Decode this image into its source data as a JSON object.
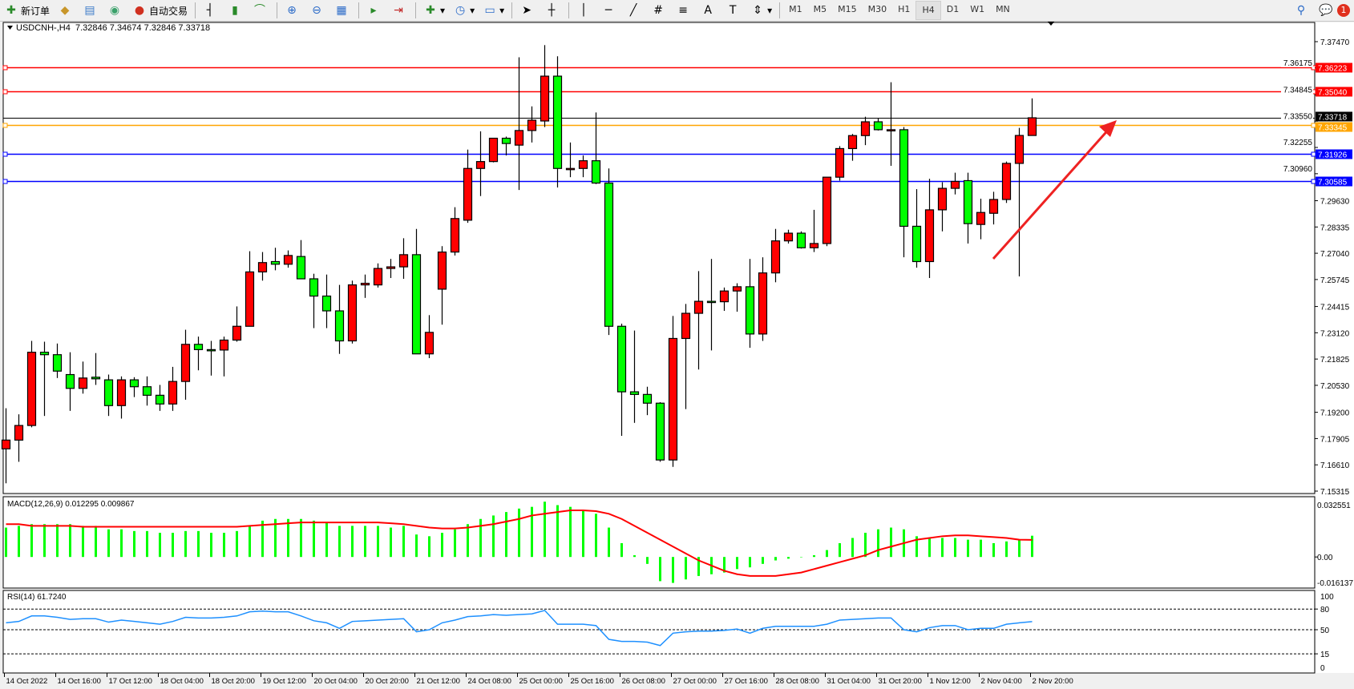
{
  "toolbar": {
    "new_order": "新订单",
    "auto_trading": "自动交易",
    "timeframes": [
      "M1",
      "M5",
      "M15",
      "M30",
      "H1",
      "H4",
      "D1",
      "W1",
      "MN"
    ],
    "active_timeframe": "H4",
    "notification_count": "1",
    "icons": [
      "new-order-icon",
      "market-watch-icon",
      "data-window-icon",
      "navigator-icon",
      "auto-trading-icon",
      "bar-chart-icon",
      "candlestick-icon",
      "line-chart-icon",
      "zoom-in-icon",
      "zoom-out-icon",
      "tile-windows-icon",
      "chart-shift-icon",
      "autoscroll-icon",
      "indicators-icon",
      "periods-icon",
      "templates-icon",
      "cursor-icon",
      "crosshair-icon",
      "vertical-line-icon",
      "horizontal-line-icon",
      "trendline-icon",
      "fibonacci-expansion-icon",
      "fibonacci-retracement-icon",
      "text-icon",
      "text-label-icon",
      "arrows-icon",
      "search-icon",
      "notification-icon"
    ]
  },
  "chart_header": "USDCNH-,H4  7.32846 7.34674 7.32846 7.33718",
  "colors": {
    "bull": "#ff0000",
    "bear": "#00ff00",
    "macd_hist": "#00ff00",
    "macd_signal": "#ff0000",
    "rsi": "#1e90ff",
    "resistance": "#ff0000",
    "pivot": "#ffa500",
    "support": "#0000ff",
    "bid": "#000000"
  },
  "chart_data": {
    "type": "candlestick",
    "symbol": "USDCNH-",
    "timeframe": "H4",
    "last_ohlc": {
      "open": 7.32846,
      "high": 7.34674,
      "low": 7.32846,
      "close": 7.33718
    },
    "ylim": [
      7.15315,
      7.3747
    ],
    "y_ticks": [
      "7.37470",
      "7.36175",
      "7.34845",
      "7.33550",
      "7.32255",
      "7.30960",
      "7.29630",
      "7.28335",
      "7.27040",
      "7.25745",
      "7.24415",
      "7.23120",
      "7.21825",
      "7.20530",
      "7.19200",
      "7.17905",
      "7.16610",
      "7.15315"
    ],
    "x_tick_labels": [
      "14 Oct 2022",
      "14 Oct 16:00",
      "17 Oct 12:00",
      "18 Oct 04:00",
      "18 Oct 20:00",
      "19 Oct 12:00",
      "20 Oct 04:00",
      "20 Oct 20:00",
      "21 Oct 12:00",
      "24 Oct 08:00",
      "25 Oct 00:00",
      "25 Oct 16:00",
      "26 Oct 08:00",
      "27 Oct 00:00",
      "27 Oct 16:00",
      "28 Oct 08:00",
      "31 Oct 04:00",
      "31 Oct 20:00",
      "1 Nov 12:00",
      "2 Nov 04:00",
      "2 Nov 20:00"
    ],
    "bars_per_tick_label": 4,
    "candles_ohlc": [
      [
        7.174,
        7.194,
        7.157,
        7.1783
      ],
      [
        7.1783,
        7.191,
        7.1676,
        7.1855
      ],
      [
        7.1855,
        7.2272,
        7.1846,
        7.2216
      ],
      [
        7.2216,
        7.2268,
        7.1902,
        7.2204
      ],
      [
        7.2204,
        7.2259,
        7.2089,
        7.2123
      ],
      [
        7.2106,
        7.2216,
        7.1927,
        7.2038
      ],
      [
        7.2038,
        7.217,
        7.2012,
        7.2089
      ],
      [
        7.2093,
        7.2212,
        7.2055,
        7.2085
      ],
      [
        7.208,
        7.2106,
        7.1902,
        7.1953
      ],
      [
        7.1953,
        7.2097,
        7.1889,
        7.208
      ],
      [
        7.208,
        7.2093,
        7.1995,
        7.2046
      ],
      [
        7.2046,
        7.2097,
        7.1953,
        7.2004
      ],
      [
        7.2004,
        7.2055,
        7.1927,
        7.1961
      ],
      [
        7.1961,
        7.2144,
        7.1927,
        7.2072
      ],
      [
        7.2072,
        7.2327,
        7.1982,
        7.2255
      ],
      [
        7.2255,
        7.2293,
        7.2127,
        7.2229
      ],
      [
        7.2229,
        7.2272,
        7.2101,
        7.2227
      ],
      [
        7.2227,
        7.2293,
        7.2097,
        7.2276
      ],
      [
        7.2276,
        7.2442,
        7.2268,
        7.2344
      ],
      [
        7.2344,
        7.2714,
        7.2344,
        7.2612
      ],
      [
        7.2612,
        7.271,
        7.2569,
        7.2658
      ],
      [
        7.2663,
        7.2731,
        7.262,
        7.265
      ],
      [
        7.265,
        7.2718,
        7.2633,
        7.2693
      ],
      [
        7.2688,
        7.2769,
        7.2578,
        7.2578
      ],
      [
        7.2578,
        7.2603,
        7.2335,
        7.2493
      ],
      [
        7.2493,
        7.2599,
        7.2335,
        7.242
      ],
      [
        7.242,
        7.2548,
        7.2208,
        7.2272
      ],
      [
        7.2272,
        7.2569,
        7.2259,
        7.2548
      ],
      [
        7.2548,
        7.2599,
        7.2484,
        7.2556
      ],
      [
        7.2548,
        7.2654,
        7.2535,
        7.2629
      ],
      [
        7.2629,
        7.2676,
        7.2582,
        7.2637
      ],
      [
        7.2637,
        7.2778,
        7.2578,
        7.2697
      ],
      [
        7.2697,
        7.2824,
        7.2208,
        7.2208
      ],
      [
        7.2208,
        7.2399,
        7.2187,
        7.2314
      ],
      [
        7.2527,
        7.2739,
        7.2352,
        7.271
      ],
      [
        7.271,
        7.2931,
        7.2693,
        7.2875
      ],
      [
        7.2867,
        7.3215,
        7.2854,
        7.3122
      ],
      [
        7.3122,
        7.3305,
        7.2986,
        7.3156
      ],
      [
        7.3156,
        7.3271,
        7.3152,
        7.3271
      ],
      [
        7.3271,
        7.3279,
        7.3186,
        7.3245
      ],
      [
        7.3237,
        7.367,
        7.3016,
        7.3309
      ],
      [
        7.3309,
        7.3428,
        7.325,
        7.336
      ],
      [
        7.3356,
        7.373,
        7.3326,
        7.3577
      ],
      [
        7.3577,
        7.3675,
        7.3028,
        7.3122
      ],
      [
        7.3122,
        7.325,
        7.3079,
        7.3122
      ],
      [
        7.3122,
        7.3186,
        7.3079,
        7.316
      ],
      [
        7.316,
        7.3398,
        7.3045,
        7.305
      ],
      [
        7.305,
        7.3122,
        7.2301,
        7.2344
      ],
      [
        7.2344,
        7.2357,
        7.1804,
        7.2021
      ],
      [
        7.2021,
        7.2323,
        7.1868,
        7.2008
      ],
      [
        7.2008,
        7.2046,
        7.1906,
        7.1965
      ],
      [
        7.1965,
        7.197,
        7.1676,
        7.1685
      ],
      [
        7.1685,
        7.2395,
        7.1651,
        7.2284
      ],
      [
        7.2284,
        7.2454,
        7.1936,
        7.2408
      ],
      [
        7.2408,
        7.2616,
        7.2131,
        7.2467
      ],
      [
        7.2467,
        7.2676,
        7.2225,
        7.2465
      ],
      [
        7.2465,
        7.2535,
        7.242,
        7.2518
      ],
      [
        7.2518,
        7.2556,
        7.2416,
        7.2539
      ],
      [
        7.2539,
        7.2676,
        7.2238,
        7.2306
      ],
      [
        7.2306,
        7.2684,
        7.2272,
        7.2607
      ],
      [
        7.2607,
        7.2824,
        7.2561,
        7.2765
      ],
      [
        7.2765,
        7.282,
        7.2752,
        7.2803
      ],
      [
        7.2803,
        7.2812,
        7.2727,
        7.2731
      ],
      [
        7.2731,
        7.2918,
        7.271,
        7.2752
      ],
      [
        7.2752,
        7.3079,
        7.2739,
        7.3079
      ],
      [
        7.3079,
        7.3232,
        7.3062,
        7.322
      ],
      [
        7.322,
        7.3292,
        7.316,
        7.3284
      ],
      [
        7.3284,
        7.3377,
        7.3237,
        7.3352
      ],
      [
        7.3352,
        7.3368,
        7.3309,
        7.3313
      ],
      [
        7.3313,
        7.3547,
        7.3135,
        7.3313
      ],
      [
        7.3313,
        7.3326,
        7.2684,
        7.2837
      ],
      [
        7.2837,
        7.302,
        7.2633,
        7.2663
      ],
      [
        7.2663,
        7.3071,
        7.2582,
        7.2918
      ],
      [
        7.2918,
        7.3054,
        7.2812,
        7.3024
      ],
      [
        7.3024,
        7.3101,
        7.2994,
        7.3058
      ],
      [
        7.3062,
        7.3101,
        7.2752,
        7.285
      ],
      [
        7.2846,
        7.2973,
        7.2773,
        7.2905
      ],
      [
        7.2901,
        7.3007,
        7.2846,
        7.2969
      ],
      [
        7.2969,
        7.3156,
        7.2952,
        7.3147
      ],
      [
        7.3147,
        7.3322,
        7.259,
        7.32846
      ],
      [
        7.32846,
        7.34674,
        7.32846,
        7.33718
      ]
    ],
    "horizontal_lines": [
      {
        "price": "7.36223",
        "color": "#ff0000"
      },
      {
        "price": "7.35040",
        "color": "#ff0000"
      },
      {
        "price": "7.33345",
        "color": "#ffa500"
      },
      {
        "price": "7.31926",
        "color": "#0000ff"
      },
      {
        "price": "7.30585",
        "color": "#0000ff"
      }
    ],
    "bid_line": {
      "price": "7.33718",
      "color": "#000000"
    },
    "annotation": "red-arrow-up",
    "macd": {
      "label": "MACD(12,26,9) 0.012295 0.009867",
      "ylim": [
        -0.016137,
        0.032551
      ],
      "y_ticks": [
        "0.032551",
        "0.00",
        "-0.016137"
      ],
      "histogram": [
        0.017,
        0.018,
        0.019,
        0.019,
        0.019,
        0.019,
        0.018,
        0.018,
        0.016,
        0.016,
        0.015,
        0.015,
        0.014,
        0.014,
        0.015,
        0.015,
        0.014,
        0.014,
        0.015,
        0.018,
        0.021,
        0.022,
        0.022,
        0.022,
        0.021,
        0.02,
        0.018,
        0.018,
        0.018,
        0.018,
        0.017,
        0.018,
        0.013,
        0.012,
        0.014,
        0.016,
        0.019,
        0.022,
        0.024,
        0.026,
        0.028,
        0.029,
        0.032,
        0.03,
        0.029,
        0.027,
        0.025,
        0.017,
        0.008,
        0.001,
        -0.004,
        -0.014,
        -0.015,
        -0.013,
        -0.011,
        -0.01,
        -0.009,
        -0.007,
        -0.006,
        -0.004,
        -0.002,
        -0.001,
        0.0,
        0.001,
        0.004,
        0.008,
        0.011,
        0.014,
        0.016,
        0.017,
        0.016,
        0.012,
        0.011,
        0.011,
        0.011,
        0.01,
        0.01,
        0.008,
        0.009,
        0.01,
        0.012295
      ],
      "signal": [
        0.019,
        0.019,
        0.018,
        0.018,
        0.018,
        0.018,
        0.0175,
        0.0175,
        0.0175,
        0.0175,
        0.0175,
        0.0175,
        0.0175,
        0.0175,
        0.0175,
        0.0175,
        0.0175,
        0.0175,
        0.0175,
        0.018,
        0.0185,
        0.019,
        0.0195,
        0.02,
        0.02,
        0.02,
        0.02,
        0.02,
        0.02,
        0.02,
        0.0195,
        0.019,
        0.018,
        0.017,
        0.0165,
        0.0165,
        0.017,
        0.018,
        0.019,
        0.0205,
        0.022,
        0.024,
        0.025,
        0.026,
        0.027,
        0.027,
        0.0265,
        0.025,
        0.022,
        0.018,
        0.014,
        0.01,
        0.006,
        0.002,
        -0.002,
        -0.005,
        -0.008,
        -0.01,
        -0.011,
        -0.011,
        -0.011,
        -0.01,
        -0.009,
        -0.007,
        -0.005,
        -0.003,
        -0.001,
        0.001,
        0.004,
        0.006,
        0.008,
        0.01,
        0.011,
        0.012,
        0.0125,
        0.0125,
        0.012,
        0.0115,
        0.011,
        0.01,
        0.009867
      ]
    },
    "rsi": {
      "label": "RSI(14) 61.7240",
      "ylim": [
        0,
        100
      ],
      "y_ticks": [
        "100",
        "80",
        "50",
        "15",
        "0"
      ],
      "levels": [
        80,
        50,
        15
      ],
      "values": [
        60,
        62,
        70,
        70,
        68,
        65,
        66,
        66,
        61,
        64,
        62,
        60,
        58,
        62,
        68,
        67,
        67,
        68,
        70,
        76,
        77,
        76,
        76,
        70,
        63,
        60,
        52,
        62,
        63,
        64,
        65,
        66,
        47,
        50,
        60,
        64,
        69,
        70,
        72,
        71,
        72,
        73,
        78,
        58,
        58,
        58,
        56,
        36,
        33,
        33,
        32,
        27,
        45,
        47,
        48,
        48,
        49,
        51,
        45,
        52,
        55,
        55,
        55,
        55,
        58,
        64,
        65,
        66,
        67,
        67,
        50,
        47,
        53,
        56,
        56,
        50,
        52,
        52,
        58,
        60,
        61.724
      ]
    }
  }
}
